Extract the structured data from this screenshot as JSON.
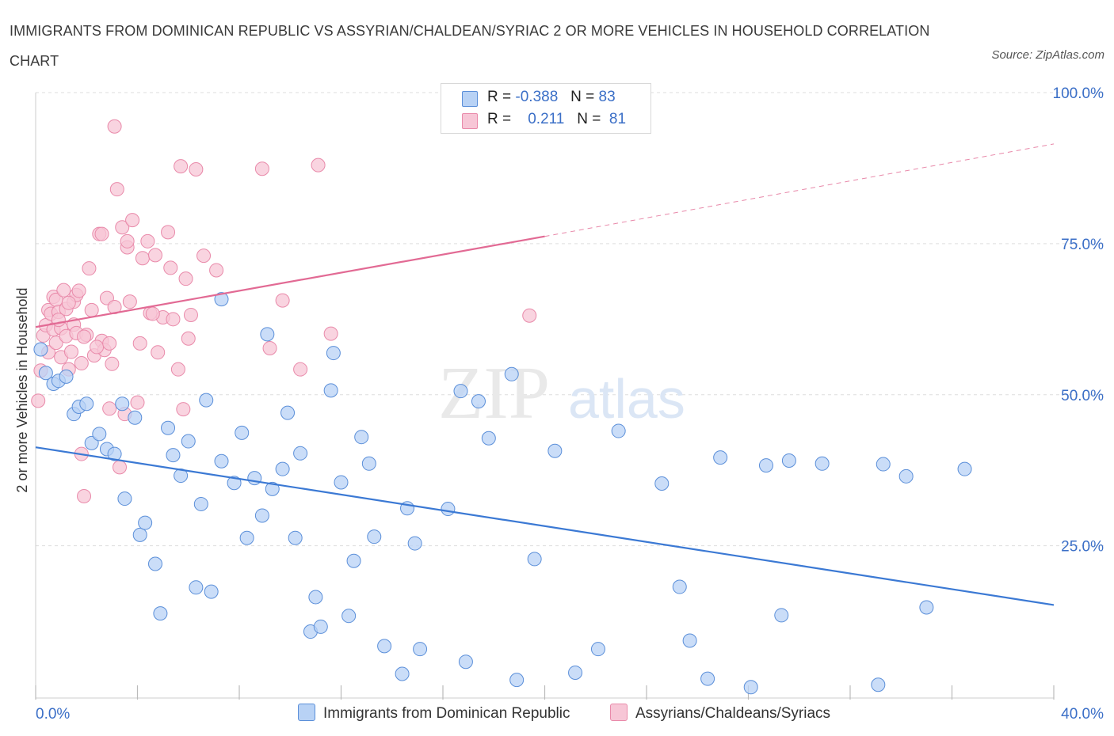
{
  "title": "IMMIGRANTS FROM DOMINICAN REPUBLIC VS ASSYRIAN/CHALDEAN/SYRIAC 2 OR MORE VEHICLES IN HOUSEHOLD CORRELATION CHART",
  "source": "Source: ZipAtlas.com",
  "watermark": {
    "zip": "ZIP",
    "atlas": "atlas"
  },
  "legend": {
    "blue": {
      "r_label": "R =",
      "r_value": "-0.388",
      "n_label": "N =",
      "n_value": "83"
    },
    "pink": {
      "r_label": "R =",
      "r_value": "0.211",
      "n_label": "N =",
      "n_value": "81"
    }
  },
  "colors": {
    "blue": "#3b79d4",
    "blue_fill": "#b8d2f5",
    "pink": "#e26a94",
    "pink_fill": "#f7c6d6",
    "axis_text": "#3b6fc7",
    "grid": "#dddddd"
  },
  "chart_data": {
    "type": "scatter",
    "title": "IMMIGRANTS FROM DOMINICAN REPUBLIC VS ASSYRIAN/CHALDEAN/SYRIAC 2 OR MORE VEHICLES IN HOUSEHOLD CORRELATION CHART",
    "xlabel": "",
    "ylabel": "2 or more Vehicles in Household",
    "xlim": [
      0,
      40
    ],
    "ylim": [
      0,
      100
    ],
    "x_tick_labels": [
      "0.0%",
      "40.0%"
    ],
    "y_tick_labels": [
      "25.0%",
      "50.0%",
      "75.0%",
      "100.0%"
    ],
    "y_ticks": [
      25,
      50,
      75,
      100
    ],
    "grid": true,
    "legend_position": "top-center",
    "series": [
      {
        "name": "Immigrants from Dominican Republic",
        "color": "#3b79d4",
        "trend": {
          "x": [
            0,
            40
          ],
          "y": [
            41.3,
            15.2
          ]
        },
        "points": [
          [
            0.2,
            57.5
          ],
          [
            0.4,
            53.6
          ],
          [
            0.7,
            51.8
          ],
          [
            0.9,
            52.3
          ],
          [
            1.2,
            53.0
          ],
          [
            1.5,
            46.8
          ],
          [
            1.7,
            48.0
          ],
          [
            2.0,
            48.5
          ],
          [
            2.2,
            42.0
          ],
          [
            2.5,
            43.5
          ],
          [
            2.8,
            41.0
          ],
          [
            3.1,
            40.2
          ],
          [
            3.4,
            48.5
          ],
          [
            3.5,
            32.8
          ],
          [
            3.9,
            46.2
          ],
          [
            4.1,
            26.8
          ],
          [
            4.3,
            28.8
          ],
          [
            4.7,
            22.0
          ],
          [
            4.9,
            13.8
          ],
          [
            5.2,
            44.5
          ],
          [
            5.4,
            40.0
          ],
          [
            5.7,
            36.6
          ],
          [
            6.0,
            42.3
          ],
          [
            6.3,
            18.1
          ],
          [
            6.5,
            31.9
          ],
          [
            6.7,
            49.1
          ],
          [
            6.9,
            17.4
          ],
          [
            7.3,
            65.8
          ],
          [
            7.3,
            39.0
          ],
          [
            7.8,
            35.4
          ],
          [
            8.1,
            43.7
          ],
          [
            8.3,
            26.3
          ],
          [
            8.6,
            36.2
          ],
          [
            8.9,
            30.0
          ],
          [
            9.1,
            60.0
          ],
          [
            9.3,
            34.4
          ],
          [
            9.7,
            37.7
          ],
          [
            9.9,
            47.0
          ],
          [
            10.2,
            26.3
          ],
          [
            10.4,
            40.3
          ],
          [
            10.8,
            10.8
          ],
          [
            11.0,
            16.5
          ],
          [
            11.2,
            11.6
          ],
          [
            11.6,
            50.7
          ],
          [
            11.7,
            56.9
          ],
          [
            12.0,
            35.5
          ],
          [
            12.3,
            13.4
          ],
          [
            12.5,
            22.5
          ],
          [
            12.8,
            43.0
          ],
          [
            13.1,
            38.6
          ],
          [
            13.3,
            26.5
          ],
          [
            13.7,
            8.4
          ],
          [
            14.4,
            3.8
          ],
          [
            14.6,
            31.2
          ],
          [
            14.9,
            25.4
          ],
          [
            15.1,
            7.9
          ],
          [
            16.2,
            31.1
          ],
          [
            16.7,
            50.6
          ],
          [
            16.9,
            5.8
          ],
          [
            17.4,
            48.9
          ],
          [
            17.8,
            42.8
          ],
          [
            18.7,
            53.4
          ],
          [
            18.9,
            2.8
          ],
          [
            19.6,
            22.8
          ],
          [
            20.4,
            40.7
          ],
          [
            21.2,
            4.0
          ],
          [
            22.1,
            7.9
          ],
          [
            22.9,
            44.0
          ],
          [
            24.6,
            35.3
          ],
          [
            25.3,
            18.2
          ],
          [
            25.7,
            9.3
          ],
          [
            26.4,
            3.0
          ],
          [
            26.9,
            39.6
          ],
          [
            28.1,
            1.6
          ],
          [
            28.7,
            38.3
          ],
          [
            29.3,
            13.5
          ],
          [
            29.6,
            39.1
          ],
          [
            30.9,
            38.6
          ],
          [
            33.1,
            2.0
          ],
          [
            33.3,
            38.5
          ],
          [
            34.2,
            36.5
          ],
          [
            35.0,
            14.8
          ],
          [
            36.5,
            37.7
          ]
        ]
      },
      {
        "name": "Assyrians/Chaldeans/Syriacs",
        "color": "#e26a94",
        "trend": {
          "x": [
            0,
            20
          ],
          "y": [
            61.2,
            76.2
          ],
          "dashed_x": [
            20,
            40
          ],
          "dashed_y": [
            76.2,
            91.5
          ]
        },
        "points": [
          [
            0.1,
            49.0
          ],
          [
            0.2,
            54.0
          ],
          [
            0.3,
            59.8
          ],
          [
            0.4,
            61.5
          ],
          [
            0.5,
            64.0
          ],
          [
            0.5,
            57.0
          ],
          [
            0.6,
            63.4
          ],
          [
            0.7,
            66.2
          ],
          [
            0.7,
            60.8
          ],
          [
            0.8,
            65.7
          ],
          [
            0.8,
            58.6
          ],
          [
            0.9,
            63.7
          ],
          [
            1.0,
            61.0
          ],
          [
            1.0,
            56.2
          ],
          [
            1.1,
            67.3
          ],
          [
            1.2,
            64.2
          ],
          [
            1.2,
            59.7
          ],
          [
            1.3,
            54.2
          ],
          [
            1.4,
            57.1
          ],
          [
            1.5,
            61.6
          ],
          [
            1.5,
            65.4
          ],
          [
            1.6,
            66.5
          ],
          [
            1.6,
            60.2
          ],
          [
            1.7,
            67.2
          ],
          [
            1.8,
            55.2
          ],
          [
            1.8,
            40.2
          ],
          [
            1.9,
            33.2
          ],
          [
            2.0,
            59.9
          ],
          [
            2.1,
            70.9
          ],
          [
            2.2,
            64.0
          ],
          [
            2.3,
            56.5
          ],
          [
            2.5,
            76.6
          ],
          [
            2.6,
            58.9
          ],
          [
            2.7,
            57.4
          ],
          [
            2.8,
            66.0
          ],
          [
            2.9,
            47.7
          ],
          [
            3.0,
            55.1
          ],
          [
            3.1,
            64.5
          ],
          [
            3.1,
            94.4
          ],
          [
            3.2,
            84.0
          ],
          [
            3.3,
            38.0
          ],
          [
            3.4,
            77.7
          ],
          [
            3.5,
            46.8
          ],
          [
            3.6,
            74.4
          ],
          [
            3.7,
            65.4
          ],
          [
            3.8,
            78.9
          ],
          [
            4.0,
            48.7
          ],
          [
            4.1,
            58.5
          ],
          [
            4.2,
            72.6
          ],
          [
            4.4,
            75.4
          ],
          [
            4.5,
            63.5
          ],
          [
            4.7,
            73.1
          ],
          [
            4.8,
            57.0
          ],
          [
            5.0,
            62.8
          ],
          [
            5.2,
            76.9
          ],
          [
            5.3,
            71.0
          ],
          [
            5.4,
            62.5
          ],
          [
            5.6,
            54.2
          ],
          [
            5.7,
            87.8
          ],
          [
            5.8,
            47.6
          ],
          [
            5.9,
            69.2
          ],
          [
            6.0,
            59.3
          ],
          [
            6.3,
            87.3
          ],
          [
            6.6,
            73.0
          ],
          [
            7.1,
            70.6
          ],
          [
            8.9,
            87.4
          ],
          [
            9.2,
            57.7
          ],
          [
            9.7,
            65.6
          ],
          [
            10.4,
            54.2
          ],
          [
            11.1,
            88.0
          ],
          [
            11.6,
            60.1
          ],
          [
            19.4,
            63.1
          ],
          [
            2.4,
            57.9
          ],
          [
            2.9,
            58.5
          ],
          [
            1.9,
            59.6
          ],
          [
            3.6,
            75.4
          ],
          [
            6.1,
            63.2
          ],
          [
            2.6,
            76.6
          ],
          [
            1.3,
            65.2
          ],
          [
            0.9,
            62.4
          ],
          [
            4.6,
            63.4
          ]
        ]
      }
    ]
  }
}
